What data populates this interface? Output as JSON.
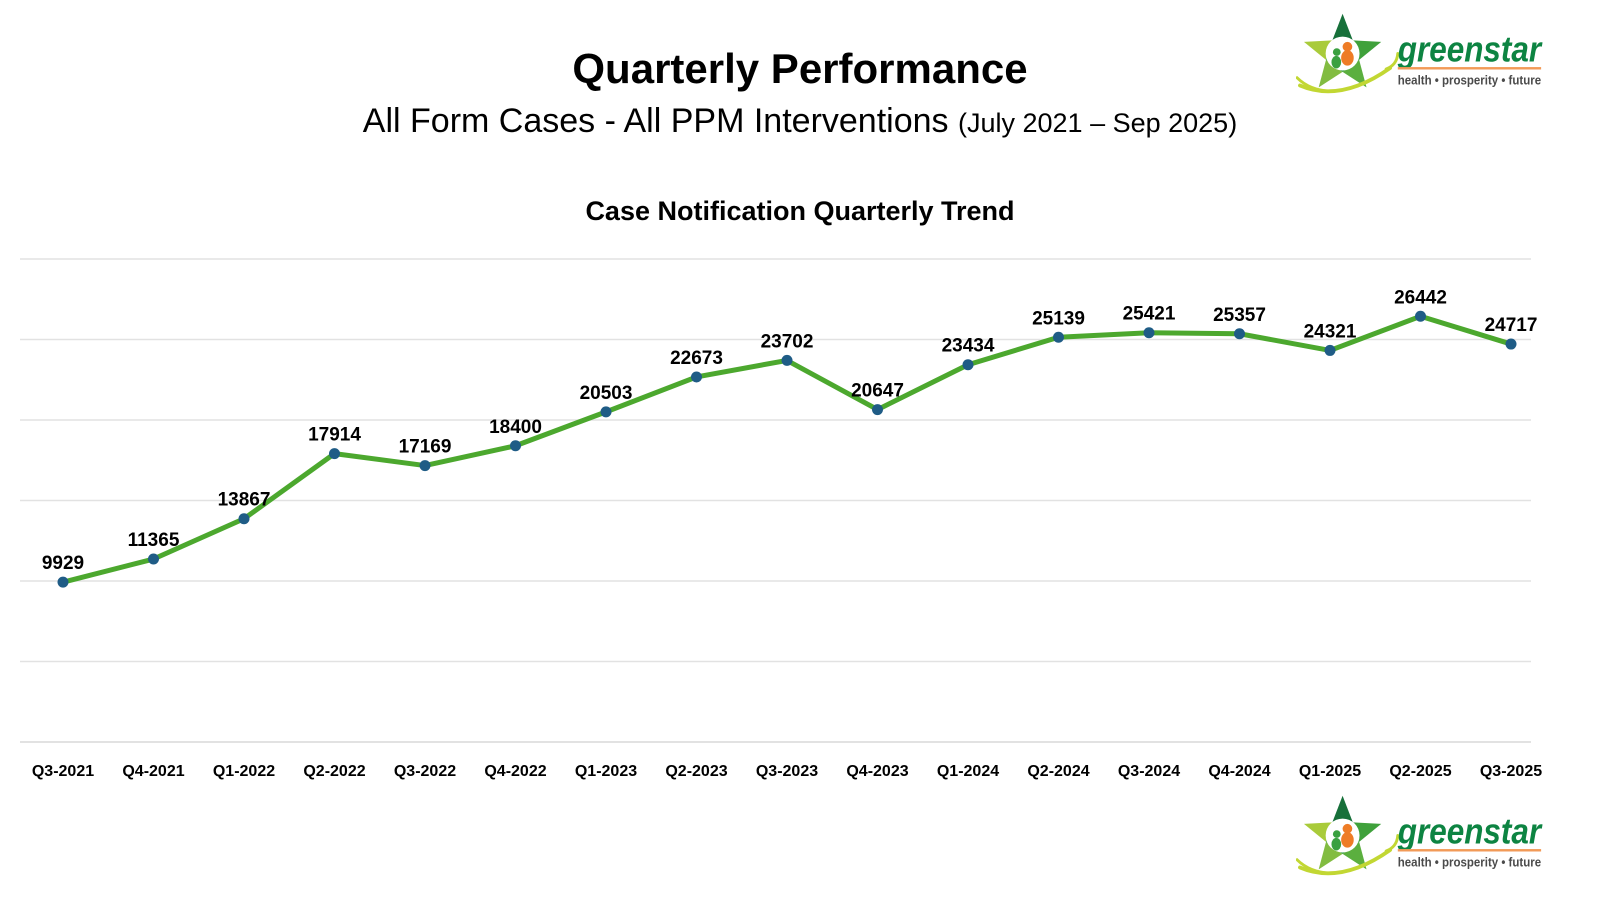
{
  "header": {
    "title": "Quarterly Performance",
    "subtitle": "All Form Cases - All PPM Interventions",
    "period": "(July 2021 – Sep 2025)"
  },
  "logo": {
    "name": "greenstar",
    "tagline": "health • prosperity • future",
    "text_color": "#0d8442",
    "underline_color": "#f29a57"
  },
  "chart_data": {
    "type": "line",
    "title": "Case Notification Quarterly Trend",
    "categories": [
      "Q3-2021",
      "Q4-2021",
      "Q1-2022",
      "Q2-2022",
      "Q3-2022",
      "Q4-2022",
      "Q1-2023",
      "Q2-2023",
      "Q3-2023",
      "Q4-2023",
      "Q1-2024",
      "Q2-2024",
      "Q3-2024",
      "Q4-2024",
      "Q1-2025",
      "Q2-2025",
      "Q3-2025"
    ],
    "values": [
      9929,
      11365,
      13867,
      17914,
      17169,
      18400,
      20503,
      22673,
      23702,
      20647,
      23434,
      25139,
      25421,
      25357,
      24321,
      26442,
      24717
    ],
    "xlabel": "",
    "ylabel": "",
    "ylim": [
      0,
      30000
    ],
    "gridline_step": 5000,
    "grid": true,
    "legend": "none",
    "data_labels": true,
    "line_color": "#4ca82e",
    "marker_color": "#1f5c86",
    "grid_color": "#e2e2e2",
    "label_color": "#000000"
  }
}
